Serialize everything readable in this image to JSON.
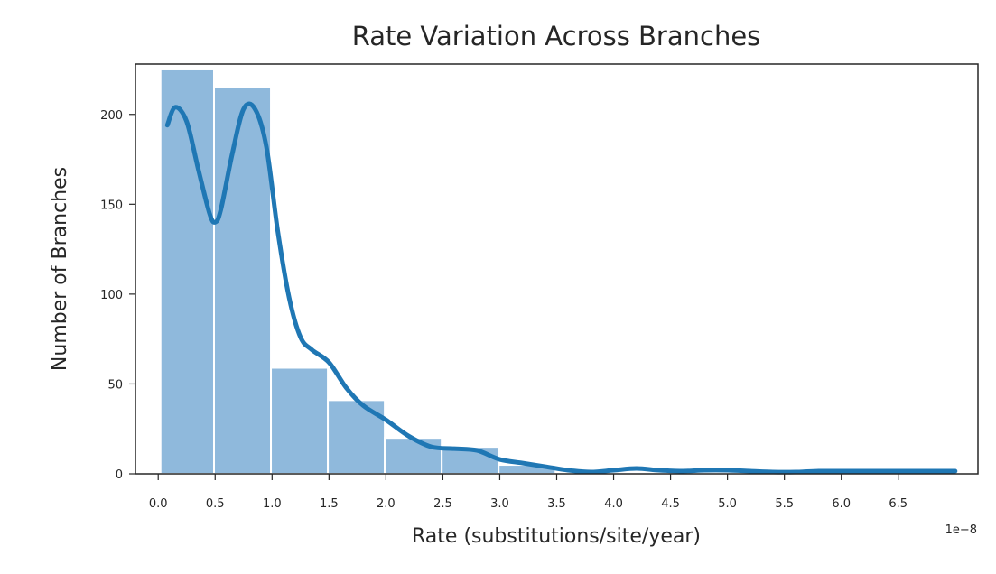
{
  "chart_data": {
    "type": "bar",
    "title": "Rate Variation Across Branches",
    "xlabel": "Rate (substitutions/site/year)",
    "ylabel": "Number of Branches",
    "x_offset_label": "1e−8",
    "xlim": [
      -0.2,
      7.2
    ],
    "ylim": [
      0,
      228
    ],
    "grid": false,
    "x_ticks": [
      0.0,
      0.5,
      1.0,
      1.5,
      2.0,
      2.5,
      3.0,
      3.5,
      4.0,
      4.5,
      5.0,
      5.5,
      6.0,
      6.5
    ],
    "x_tick_labels": [
      "0.0",
      "0.5",
      "1.0",
      "1.5",
      "2.0",
      "2.5",
      "3.0",
      "3.5",
      "4.0",
      "4.5",
      "5.0",
      "5.5",
      "6.0",
      "6.5"
    ],
    "y_ticks": [
      0,
      50,
      100,
      150,
      200
    ],
    "y_tick_labels": [
      "0",
      "50",
      "100",
      "150",
      "200"
    ],
    "bins": [
      {
        "start": 0.02,
        "end": 0.49,
        "value": 225
      },
      {
        "start": 0.49,
        "end": 0.99,
        "value": 215
      },
      {
        "start": 0.99,
        "end": 1.49,
        "value": 59
      },
      {
        "start": 1.49,
        "end": 1.99,
        "value": 41
      },
      {
        "start": 1.99,
        "end": 2.49,
        "value": 20
      },
      {
        "start": 2.49,
        "end": 2.99,
        "value": 15
      },
      {
        "start": 2.99,
        "end": 3.49,
        "value": 5
      }
    ],
    "kde_curve": {
      "x": [
        0.08,
        0.15,
        0.25,
        0.35,
        0.45,
        0.5,
        0.55,
        0.65,
        0.75,
        0.85,
        0.95,
        1.05,
        1.15,
        1.25,
        1.35,
        1.5,
        1.65,
        1.8,
        2.0,
        2.2,
        2.4,
        2.6,
        2.8,
        3.0,
        3.2,
        3.4,
        3.6,
        3.8,
        4.0,
        4.2,
        4.4,
        4.6,
        4.8,
        5.0,
        5.2,
        5.4,
        5.6,
        5.8,
        6.0,
        6.2,
        6.4,
        6.6,
        6.8,
        7.0
      ],
      "y": [
        194,
        204,
        196,
        170,
        145,
        140,
        147,
        178,
        203,
        203,
        182,
        135,
        98,
        76,
        69,
        62,
        48,
        38,
        30,
        21,
        15,
        14,
        13,
        8,
        6,
        4,
        2,
        1,
        2,
        3,
        2,
        1.5,
        2,
        2,
        1.5,
        1,
        1,
        1.5,
        1.5,
        1.5,
        1.5,
        1.5,
        1.5,
        1.5
      ]
    },
    "colors": {
      "bar_fill": "#8fb9dc",
      "bar_edge": "#ffffff",
      "curve": "#1f77b4",
      "axes": "#262626"
    }
  }
}
